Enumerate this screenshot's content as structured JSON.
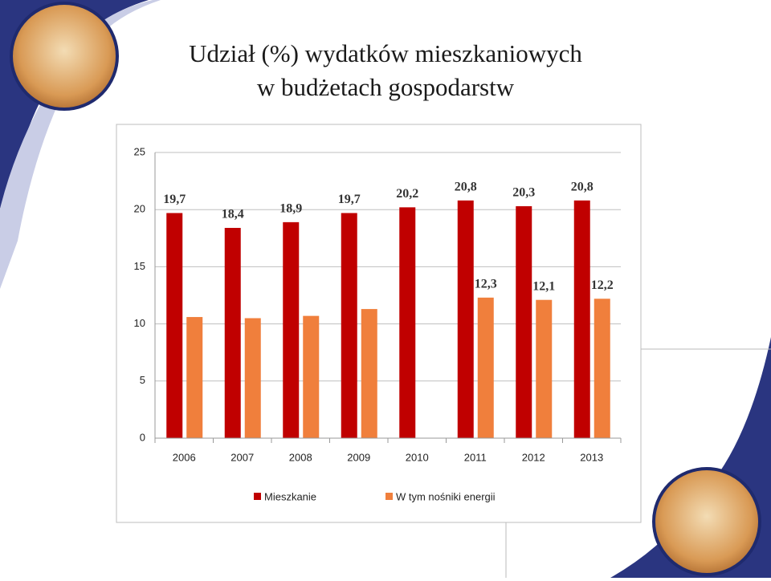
{
  "chart_data": {
    "type": "bar",
    "title": [
      "Udział (%) wydatków mieszkaniowych",
      "w budżetach gospodarstw"
    ],
    "categories": [
      "2006",
      "2007",
      "2008",
      "2009",
      "2010",
      "2011",
      "2012",
      "2013"
    ],
    "series": [
      {
        "name": "Mieszkanie",
        "color": "#c00000",
        "values": [
          19.7,
          18.4,
          18.9,
          19.7,
          20.2,
          20.8,
          20.3,
          20.8
        ],
        "value_labels": [
          "19,7",
          "18,4",
          "18,9",
          "19,7",
          "20,2",
          "20,8",
          "20,3",
          "20,8"
        ]
      },
      {
        "name": "W tym nośniki energii",
        "color": "#f07f3c",
        "values": [
          10.6,
          10.5,
          10.7,
          11.3,
          null,
          12.3,
          12.1,
          12.2
        ],
        "value_labels": [
          null,
          null,
          null,
          null,
          null,
          "12,3",
          "12,1",
          "12,2"
        ]
      }
    ],
    "ylim": [
      0,
      25
    ],
    "yticks": [
      0,
      5,
      10,
      15,
      20,
      25
    ],
    "grid": true,
    "legend": "bottom"
  }
}
